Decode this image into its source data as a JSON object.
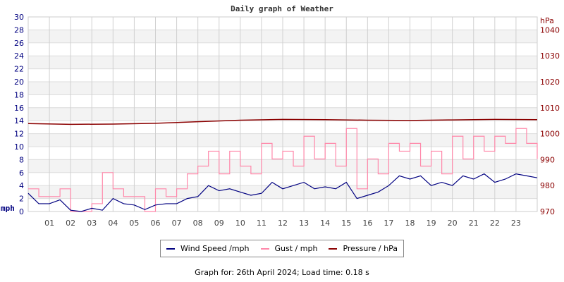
{
  "chart_data": {
    "type": "line",
    "title": "Daily graph of Weather",
    "left_axis": {
      "label": "mph",
      "range": [
        0,
        30
      ],
      "ticks": [
        0,
        2,
        4,
        6,
        8,
        10,
        12,
        14,
        16,
        18,
        20,
        22,
        24,
        26,
        28,
        30
      ],
      "color": "#000080"
    },
    "right_axis": {
      "label": "hPa",
      "range": [
        970,
        1045
      ],
      "ticks": [
        970,
        980,
        990,
        1000,
        1010,
        1020,
        1030,
        1040
      ],
      "color": "#8b0000"
    },
    "x_axis": {
      "range": [
        0,
        24
      ],
      "tick_labels": [
        "01",
        "02",
        "03",
        "04",
        "05",
        "06",
        "07",
        "08",
        "09",
        "10",
        "11",
        "12",
        "13",
        "14",
        "15",
        "16",
        "17",
        "18",
        "19",
        "20",
        "21",
        "22",
        "23"
      ]
    },
    "grid": true,
    "legend_placement": "bottom",
    "series": [
      {
        "name": "Wind Speed /mph",
        "axis": "left",
        "color": "#000080",
        "x_step_hours": 0.5,
        "values": [
          2.8,
          1.2,
          1.2,
          1.8,
          0.2,
          0.0,
          0.5,
          0.2,
          2.0,
          1.2,
          1.0,
          0.3,
          1.0,
          1.2,
          1.2,
          2.0,
          2.3,
          4.0,
          3.2,
          3.5,
          3.0,
          2.5,
          2.8,
          4.5,
          3.5,
          4.0,
          4.5,
          3.5,
          3.8,
          3.5,
          4.5,
          2.0,
          2.5,
          3.0,
          4.0,
          5.5,
          5.0,
          5.5,
          4.0,
          4.5,
          4.0,
          5.5,
          5.0,
          5.8,
          4.5,
          5.0,
          5.8,
          5.5,
          5.2
        ]
      },
      {
        "name": "Gust / mph",
        "axis": "left",
        "color": "#ff88aa",
        "x_step_hours": 0.5,
        "values": [
          3.5,
          2.3,
          2.3,
          3.5,
          0,
          0,
          1.2,
          6,
          3.5,
          2.3,
          2.3,
          0,
          3.5,
          2.3,
          3.5,
          5.8,
          7,
          9.3,
          5.8,
          9.3,
          7,
          5.8,
          10.5,
          8.1,
          9.3,
          7,
          11.6,
          8.1,
          10.5,
          7,
          12.8,
          3.5,
          8.1,
          5.8,
          10.5,
          9.3,
          10.5,
          7,
          9.3,
          5.8,
          11.6,
          8.1,
          11.6,
          9.3,
          11.6,
          10.5,
          12.8,
          10.5,
          8.1
        ]
      },
      {
        "name": "Pressure / hPa",
        "axis": "right",
        "color": "#8b0000",
        "x_step_hours": 2,
        "values": [
          1003.9,
          1003.6,
          1003.7,
          1004.0,
          1004.6,
          1005.2,
          1005.5,
          1005.4,
          1005.2,
          1005.1,
          1005.3,
          1005.5,
          1005.4
        ]
      }
    ]
  },
  "footer": "Graph for: 26th April 2024; Load time: 0.18 s"
}
